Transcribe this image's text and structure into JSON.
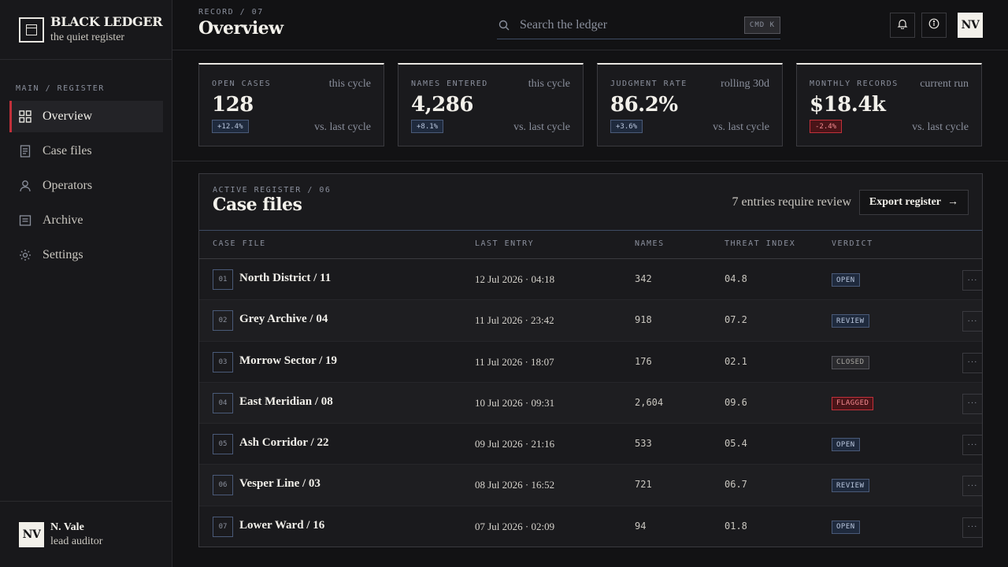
{
  "brand": {
    "title": "BLACK LEDGER",
    "subtitle": "the quiet register"
  },
  "nav": {
    "heading": "MAIN / REGISTER",
    "items": [
      {
        "label": "Overview",
        "icon": "grid-icon"
      },
      {
        "label": "Case files",
        "icon": "file-icon"
      },
      {
        "label": "Operators",
        "icon": "user-icon"
      },
      {
        "label": "Archive",
        "icon": "archive-icon"
      },
      {
        "label": "Settings",
        "icon": "gear-icon"
      }
    ]
  },
  "user": {
    "initials": "NV",
    "name": "N. Vale",
    "role": "lead auditor"
  },
  "header": {
    "crumb": "RECORD / 07",
    "title": "Overview",
    "search_placeholder": "Search the ledger",
    "shortcut": "CMD K",
    "avatar_initials": "NV"
  },
  "stats": [
    {
      "label": "OPEN CASES",
      "period": "this cycle",
      "value": "128",
      "delta": "+12.4%",
      "compare": "vs. last cycle"
    },
    {
      "label": "NAMES ENTERED",
      "period": "this cycle",
      "value": "4,286",
      "delta": "+8.1%",
      "compare": "vs. last cycle"
    },
    {
      "label": "JUDGMENT RATE",
      "period": "rolling 30d",
      "value": "86.2%",
      "delta": "+3.6%",
      "compare": "vs. last cycle"
    },
    {
      "label": "MONTHLY RECORDS",
      "period": "current run",
      "value": "$18.4k",
      "delta": "-2.4%",
      "compare": "vs. last cycle"
    }
  ],
  "panel": {
    "crumb": "ACTIVE REGISTER / 06",
    "title": "Case files",
    "review_note": "7 entries require review",
    "export_label": "Export register",
    "columns": [
      "CASE FILE",
      "LAST ENTRY",
      "NAMES",
      "THREAT INDEX",
      "VERDICT"
    ],
    "rows": [
      {
        "idx": "01",
        "name": "North District / 11",
        "last_entry": "12 Jul 2026 · 04:18",
        "names": "342",
        "threat": "04.8",
        "verdict": "OPEN"
      },
      {
        "idx": "02",
        "name": "Grey Archive / 04",
        "last_entry": "11 Jul 2026 · 23:42",
        "names": "918",
        "threat": "07.2",
        "verdict": "REVIEW"
      },
      {
        "idx": "03",
        "name": "Morrow Sector / 19",
        "last_entry": "11 Jul 2026 · 18:07",
        "names": "176",
        "threat": "02.1",
        "verdict": "CLOSED"
      },
      {
        "idx": "04",
        "name": "East Meridian / 08",
        "last_entry": "10 Jul 2026 · 09:31",
        "names": "2,604",
        "threat": "09.6",
        "verdict": "FLAGGED"
      },
      {
        "idx": "05",
        "name": "Ash Corridor / 22",
        "last_entry": "09 Jul 2026 · 21:16",
        "names": "533",
        "threat": "05.4",
        "verdict": "OPEN"
      },
      {
        "idx": "06",
        "name": "Vesper Line / 03",
        "last_entry": "08 Jul 2026 · 16:52",
        "names": "721",
        "threat": "06.7",
        "verdict": "REVIEW"
      },
      {
        "idx": "07",
        "name": "Lower Ward / 16",
        "last_entry": "07 Jul 2026 · 02:09",
        "names": "94",
        "threat": "01.8",
        "verdict": "OPEN"
      }
    ]
  },
  "colors": {
    "accent": "#c2303a",
    "background": "#121214",
    "panel": "#1a1a1d",
    "badge_blue": "#1f2a3d"
  }
}
